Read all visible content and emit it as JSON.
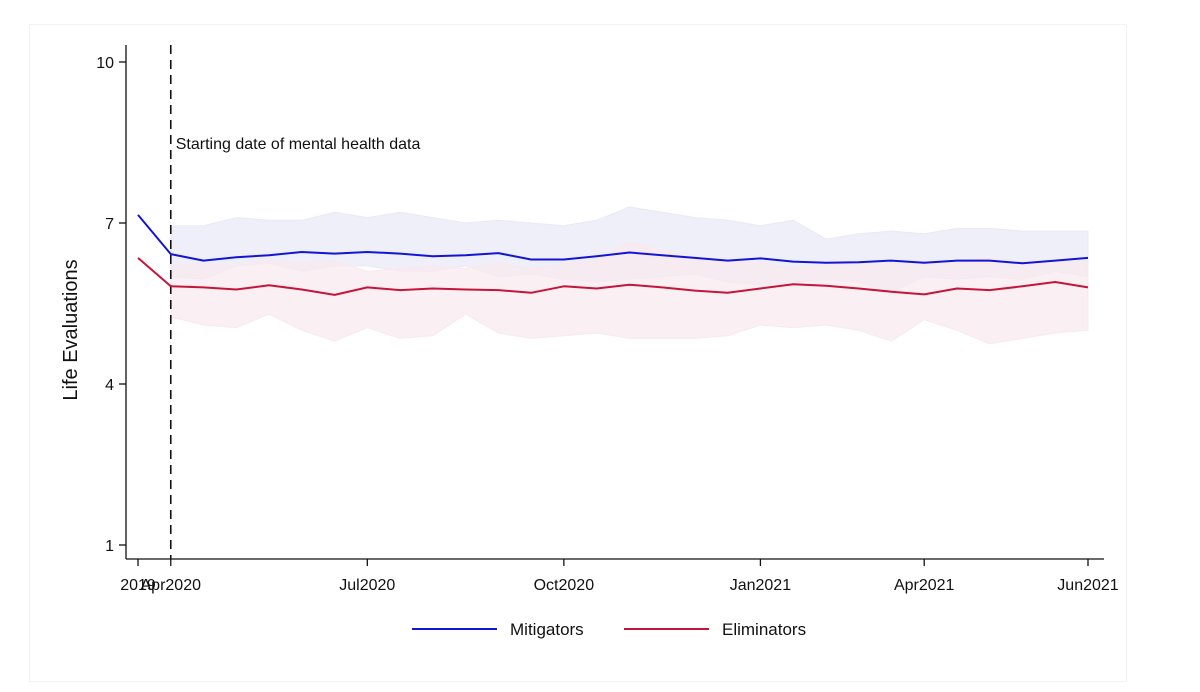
{
  "chart_data": {
    "type": "line",
    "title": "",
    "xlabel": "",
    "ylabel": "Life Evaluations",
    "ylim": [
      1,
      10
    ],
    "yticks": [
      1,
      4,
      7,
      10
    ],
    "xticks": [
      {
        "x": 0,
        "label": "2019"
      },
      {
        "x": 1,
        "label": "Apr2020"
      },
      {
        "x": 7,
        "label": "Jul2020"
      },
      {
        "x": 13,
        "label": "Oct2020"
      },
      {
        "x": 19,
        "label": "Jan2021"
      },
      {
        "x": 24,
        "label": "Apr2021"
      },
      {
        "x": 29,
        "label": "Jun2021"
      }
    ],
    "x": [
      0,
      1,
      2,
      3,
      4,
      5,
      6,
      7,
      8,
      9,
      10,
      11,
      12,
      13,
      14,
      15,
      16,
      17,
      18,
      19,
      20,
      21,
      22,
      23,
      24,
      25,
      26,
      27,
      28,
      29
    ],
    "annotation": {
      "x": 1,
      "text": "Starting date of mental health data"
    },
    "series": [
      {
        "name": "Mitigators",
        "color": "#1414d4",
        "band_color": "#e9e9f7",
        "values": [
          7.15,
          6.42,
          6.3,
          6.36,
          6.4,
          6.46,
          6.43,
          6.46,
          6.43,
          6.38,
          6.4,
          6.44,
          6.32,
          6.32,
          6.38,
          6.45,
          6.4,
          6.35,
          6.3,
          6.34,
          6.28,
          6.26,
          6.27,
          6.3,
          6.26,
          6.3,
          6.3,
          6.25,
          6.3,
          6.35
        ],
        "lower": [
          null,
          6.0,
          5.95,
          6.2,
          6.25,
          6.1,
          6.2,
          6.2,
          6.1,
          6.1,
          6.2,
          6.0,
          6.05,
          5.95,
          5.9,
          5.95,
          6.0,
          6.05,
          5.9,
          5.85,
          5.9,
          5.95,
          5.9,
          5.7,
          6.0,
          5.95,
          6.0,
          5.95,
          6.1,
          6.0
        ],
        "upper": [
          null,
          6.95,
          6.95,
          7.1,
          7.05,
          7.05,
          7.2,
          7.1,
          7.2,
          7.1,
          7.0,
          7.05,
          7.0,
          6.95,
          7.05,
          7.3,
          7.2,
          7.1,
          7.05,
          6.95,
          7.05,
          6.7,
          6.8,
          6.85,
          6.8,
          6.9,
          6.9,
          6.85,
          6.85,
          6.85
        ]
      },
      {
        "name": "Eliminators",
        "color": "#c4153c",
        "band_color": "#f8e9ed",
        "values": [
          6.35,
          5.82,
          5.8,
          5.76,
          5.84,
          5.76,
          5.66,
          5.8,
          5.75,
          5.78,
          5.76,
          5.75,
          5.7,
          5.82,
          5.78,
          5.85,
          5.8,
          5.74,
          5.7,
          5.78,
          5.86,
          5.83,
          5.78,
          5.72,
          5.67,
          5.78,
          5.75,
          5.82,
          5.9,
          5.8
        ],
        "lower": [
          null,
          5.25,
          5.1,
          5.05,
          5.3,
          5.0,
          4.8,
          5.05,
          4.85,
          4.9,
          5.3,
          4.95,
          4.85,
          4.9,
          4.95,
          4.85,
          4.85,
          4.85,
          4.9,
          5.1,
          5.05,
          5.1,
          5.0,
          4.8,
          5.2,
          5.0,
          4.75,
          4.85,
          4.95,
          5.0
        ],
        "upper": [
          null,
          6.2,
          6.25,
          6.2,
          6.3,
          6.25,
          6.3,
          6.1,
          6.15,
          6.2,
          6.15,
          6.25,
          6.15,
          6.25,
          6.3,
          6.65,
          6.5,
          6.35,
          6.3,
          6.25,
          6.15,
          6.25,
          6.3,
          6.25,
          6.25,
          6.25,
          6.35,
          6.2,
          6.3,
          6.25
        ]
      }
    ],
    "legend": {
      "position": "bottom",
      "items": [
        "Mitigators",
        "Eliminators"
      ]
    }
  }
}
